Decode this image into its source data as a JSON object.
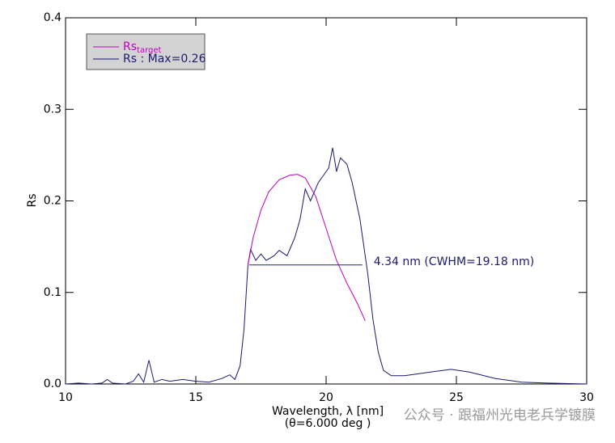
{
  "chart_data": {
    "type": "line",
    "x_label": "Wavelength, λ [nm]",
    "x_label_2": "(θ=6.000 deg )",
    "y_label": "Rs",
    "xlim": [
      10,
      30
    ],
    "xticks": [
      10,
      15,
      20,
      25,
      30
    ],
    "ylim": [
      0,
      0.4
    ],
    "yticks": [
      {
        "value": 0,
        "label": "0.0"
      },
      0.1,
      0.2,
      0.3,
      0.4
    ],
    "series": [
      {
        "name": "Rs",
        "subscript": "target",
        "color": "#c000c0",
        "x": [
          17,
          17.2,
          17.5,
          17.8,
          18.2,
          18.6,
          18.9,
          19.2,
          19.6,
          20.0,
          20.4,
          20.8,
          21.2,
          21.5
        ],
        "values": [
          0.13,
          0.16,
          0.19,
          0.21,
          0.223,
          0.228,
          0.229,
          0.225,
          0.205,
          0.17,
          0.135,
          0.11,
          0.088,
          0.069
        ]
      },
      {
        "name": "Rs : Max=0.26",
        "color": "#1a1a6e",
        "x": [
          10,
          10.5,
          11,
          11.4,
          11.6,
          11.8,
          12.3,
          12.6,
          12.8,
          13.0,
          13.2,
          13.4,
          13.7,
          14,
          14.5,
          15,
          15.5,
          16,
          16.3,
          16.5,
          16.7,
          16.85,
          17.0,
          17.1,
          17.3,
          17.5,
          17.7,
          18.0,
          18.2,
          18.5,
          18.8,
          19.0,
          19.2,
          19.4,
          19.7,
          20.0,
          20.1,
          20.25,
          20.4,
          20.55,
          20.8,
          21.0,
          21.3,
          21.6,
          21.8,
          22.0,
          22.2,
          22.5,
          23,
          24,
          24.8,
          25.5,
          26.5,
          27.5,
          28.5,
          30
        ],
        "values": [
          0.0,
          0.001,
          0.0,
          0.001,
          0.005,
          0.001,
          0.0,
          0.003,
          0.011,
          0.002,
          0.026,
          0.002,
          0.005,
          0.003,
          0.005,
          0.003,
          0.002,
          0.006,
          0.01,
          0.005,
          0.02,
          0.06,
          0.13,
          0.147,
          0.135,
          0.142,
          0.135,
          0.14,
          0.146,
          0.14,
          0.16,
          0.18,
          0.213,
          0.2,
          0.22,
          0.232,
          0.236,
          0.258,
          0.232,
          0.247,
          0.24,
          0.22,
          0.18,
          0.12,
          0.07,
          0.035,
          0.015,
          0.009,
          0.009,
          0.013,
          0.016,
          0.013,
          0.006,
          0.002,
          0.001,
          0.0
        ]
      }
    ],
    "annotation": {
      "text": "4.34 nm (CWHM=19.18 nm)",
      "x": [
        17.05,
        21.39
      ],
      "y": 0.13
    },
    "watermark": "公众号 · 跟福州光电老兵学镀膜"
  }
}
